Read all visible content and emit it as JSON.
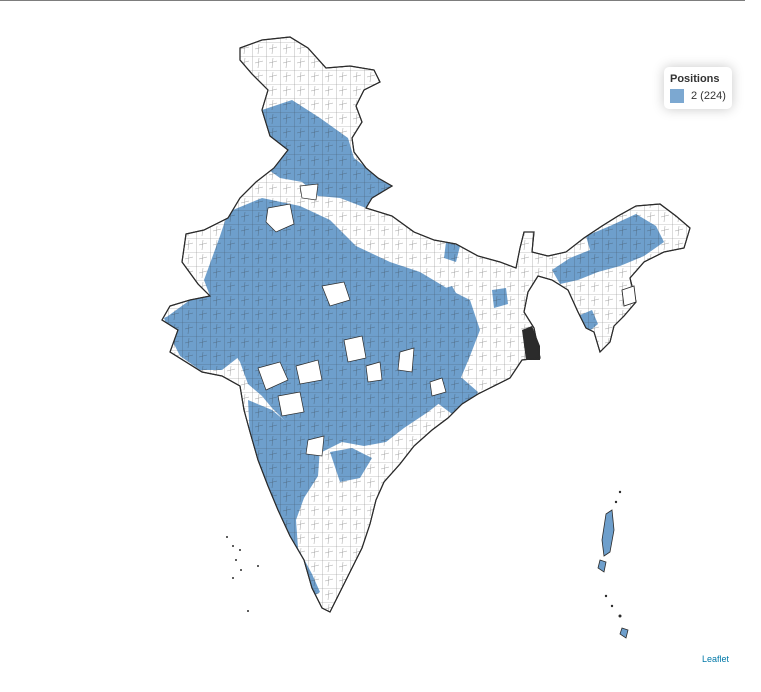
{
  "legend": {
    "title": "Positions",
    "items": [
      {
        "label": "2 (224)",
        "color": "#6e9fcc"
      }
    ]
  },
  "attribution": {
    "label": "Leaflet"
  },
  "style": {
    "fill_selected": "#6e9fcc",
    "fill_other": "#ffffff",
    "stroke": "#2b2b2b"
  }
}
